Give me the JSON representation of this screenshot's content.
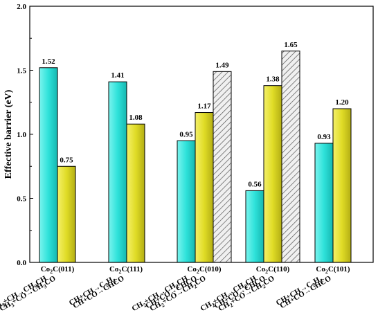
{
  "chart_data": {
    "type": "bar",
    "title": "",
    "xlabel": "",
    "ylabel": "Effective barrier (eV)",
    "ylim": [
      0,
      2.0
    ],
    "yticks": [
      "0.0",
      "0.5",
      "1.0",
      "1.5",
      "2.0"
    ],
    "grid": false,
    "legend": "none",
    "groups": [
      {
        "label": {
          "base": "Co",
          "sub": "2",
          "rest": "C(011)"
        },
        "bars": [
          {
            "value": 1.52,
            "label": "1.52",
            "style": "cyan"
          },
          {
            "value": 0.75,
            "label": "0.75",
            "style": "yellow"
          }
        ],
        "reactions": [
          [
            [
              "CH",
              ""
            ],
            [
              "3",
              "sub"
            ],
            [
              "+CH→CH",
              ""
            ],
            [
              "3",
              "sub"
            ],
            [
              "CH",
              ""
            ]
          ],
          [
            [
              "CH",
              ""
            ],
            [
              "3",
              "sub"
            ],
            [
              "+CO→CH",
              ""
            ],
            [
              "3",
              "sub"
            ],
            [
              "CO",
              ""
            ]
          ]
        ]
      },
      {
        "label": {
          "base": "Co",
          "sub": "2",
          "rest": "C(111)"
        },
        "bars": [
          {
            "value": 1.41,
            "label": "1.41",
            "style": "cyan"
          },
          {
            "value": 1.08,
            "label": "1.08",
            "style": "yellow"
          }
        ],
        "reactions": [
          [
            [
              "CH+CH→C",
              ""
            ],
            [
              "2",
              "sub"
            ],
            [
              "H",
              ""
            ],
            [
              "2",
              "sub"
            ]
          ],
          [
            [
              "CH+CO→CHCO",
              ""
            ]
          ]
        ]
      },
      {
        "label": {
          "base": "Co",
          "sub": "2",
          "rest": "C(010)"
        },
        "bars": [
          {
            "value": 0.95,
            "label": "0.95",
            "style": "cyan"
          },
          {
            "value": 1.17,
            "label": "1.17",
            "style": "yellow"
          },
          {
            "value": 1.49,
            "label": "1.49",
            "style": "hatched"
          }
        ],
        "reactions": [
          [
            [
              "CH",
              ""
            ],
            [
              "2",
              "sub"
            ],
            [
              "+CH→CH",
              ""
            ],
            [
              "2",
              "sub"
            ],
            [
              "CH",
              ""
            ]
          ],
          [
            [
              "CH+CO→CHCO",
              ""
            ]
          ],
          [
            [
              "CH",
              ""
            ],
            [
              "2",
              "sub"
            ],
            [
              "+CO→CH",
              ""
            ],
            [
              "2",
              "sub"
            ],
            [
              "CO",
              ""
            ]
          ]
        ]
      },
      {
        "label": {
          "base": "Co",
          "sub": "2",
          "rest": "C(110)"
        },
        "bars": [
          {
            "value": 0.56,
            "label": "0.56",
            "style": "cyan"
          },
          {
            "value": 1.38,
            "label": "1.38",
            "style": "yellow"
          },
          {
            "value": 1.65,
            "label": "1.65",
            "style": "hatched"
          }
        ],
        "reactions": [
          [
            [
              "CH",
              ""
            ],
            [
              "2",
              "sub"
            ],
            [
              "+CH→CH",
              ""
            ],
            [
              "2",
              "sub"
            ],
            [
              "CH",
              ""
            ]
          ],
          [
            [
              "CH+CO→CHCO",
              ""
            ]
          ],
          [
            [
              "CH",
              ""
            ],
            [
              "2",
              "sub"
            ],
            [
              "+CO→CH",
              ""
            ],
            [
              "2",
              "sub"
            ],
            [
              "CO",
              ""
            ]
          ]
        ]
      },
      {
        "label": {
          "base": "Co",
          "sub": "2",
          "rest": "C(101)"
        },
        "bars": [
          {
            "value": 0.93,
            "label": "0.93",
            "style": "cyan"
          },
          {
            "value": 1.2,
            "label": "1.20",
            "style": "yellow"
          }
        ],
        "reactions": [
          [
            [
              "CH+CH→C",
              ""
            ],
            [
              "2",
              "sub"
            ],
            [
              "H",
              ""
            ],
            [
              "2",
              "sub"
            ]
          ],
          [
            [
              "CH+CO→CHCO",
              ""
            ]
          ]
        ]
      }
    ]
  },
  "colors": {
    "cyan_fill": "#33e6de",
    "yellow_fill": "#e6e22c",
    "hatch_fill": "#e8e8e8",
    "stroke": "#000000"
  }
}
